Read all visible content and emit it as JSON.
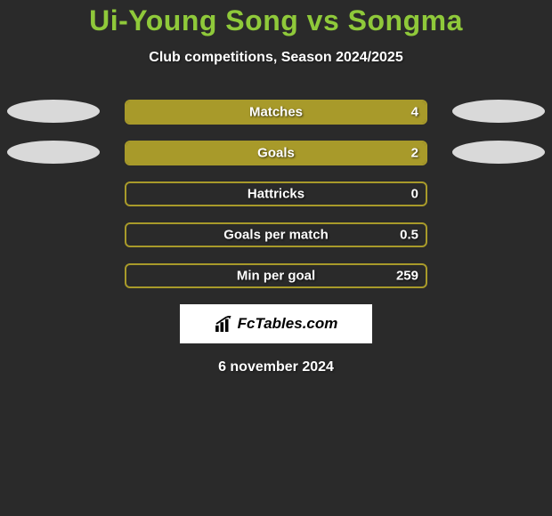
{
  "title": "Ui-Young Song vs Songma",
  "subtitle": "Club competitions, Season 2024/2025",
  "date": "6 november 2024",
  "logo_text": "FcTables.com",
  "text_color": "#ffffff",
  "title_color": "#8fc93a",
  "background_color": "#2a2a2a",
  "rows": [
    {
      "label": "Matches",
      "value": "4",
      "ellipse_left_color": "#d9d9d9",
      "ellipse_right_color": "#d9d9d9",
      "bar_border_color": "#a89a2a",
      "bar_fill_color": "#a89a2a",
      "fill_percent": 100
    },
    {
      "label": "Goals",
      "value": "2",
      "ellipse_left_color": "#d9d9d9",
      "ellipse_right_color": "#d9d9d9",
      "bar_border_color": "#a89a2a",
      "bar_fill_color": "#a89a2a",
      "fill_percent": 100
    },
    {
      "label": "Hattricks",
      "value": "0",
      "ellipse_left_color": "",
      "ellipse_right_color": "",
      "bar_border_color": "#a89a2a",
      "bar_fill_color": "#a89a2a",
      "fill_percent": 0
    },
    {
      "label": "Goals per match",
      "value": "0.5",
      "ellipse_left_color": "",
      "ellipse_right_color": "",
      "bar_border_color": "#a89a2a",
      "bar_fill_color": "#a89a2a",
      "fill_percent": 0
    },
    {
      "label": "Min per goal",
      "value": "259",
      "ellipse_left_color": "",
      "ellipse_right_color": "",
      "bar_border_color": "#a89a2a",
      "bar_fill_color": "#a89a2a",
      "fill_percent": 0
    }
  ]
}
